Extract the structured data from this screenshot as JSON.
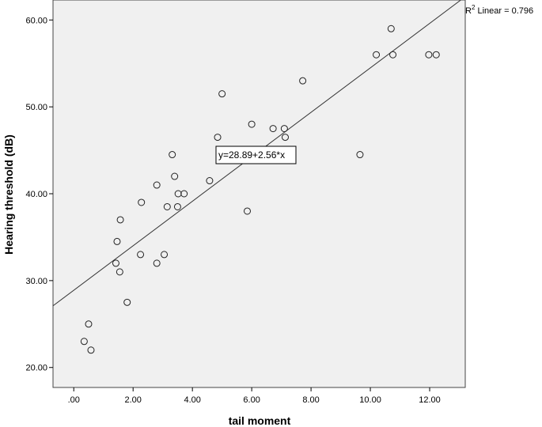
{
  "chart_data": {
    "type": "scatter",
    "xlabel": "tail moment",
    "ylabel": "Hearing threshold (dB)",
    "xlim": [
      -0.7,
      13.2
    ],
    "ylim": [
      17.7,
      62.3
    ],
    "x_ticks": [
      0,
      2,
      4,
      6,
      8,
      10,
      12
    ],
    "x_tick_labels": [
      ".00",
      "2.00",
      "4.00",
      "6.00",
      "8.00",
      "10.00",
      "12.00"
    ],
    "y_ticks": [
      20,
      30,
      40,
      50,
      60
    ],
    "y_tick_labels": [
      "20.00",
      "30.00",
      "40.00",
      "50.00",
      "60.00"
    ],
    "grid": false,
    "background_color": "#f0f0f0",
    "marker": "open-circle",
    "points": [
      {
        "x": 0.35,
        "y": 23.0
      },
      {
        "x": 0.5,
        "y": 25.0
      },
      {
        "x": 0.58,
        "y": 22.0
      },
      {
        "x": 1.42,
        "y": 32.0
      },
      {
        "x": 1.46,
        "y": 34.5
      },
      {
        "x": 1.55,
        "y": 31.0
      },
      {
        "x": 1.57,
        "y": 37.0
      },
      {
        "x": 1.8,
        "y": 27.5
      },
      {
        "x": 2.25,
        "y": 33.0
      },
      {
        "x": 2.28,
        "y": 39.0
      },
      {
        "x": 2.8,
        "y": 41.0
      },
      {
        "x": 2.8,
        "y": 32.0
      },
      {
        "x": 3.05,
        "y": 33.0
      },
      {
        "x": 3.15,
        "y": 38.5
      },
      {
        "x": 3.32,
        "y": 44.5
      },
      {
        "x": 3.4,
        "y": 42.0
      },
      {
        "x": 3.5,
        "y": 38.5
      },
      {
        "x": 3.52,
        "y": 40.0
      },
      {
        "x": 3.72,
        "y": 40.0
      },
      {
        "x": 4.58,
        "y": 41.5
      },
      {
        "x": 4.85,
        "y": 46.5
      },
      {
        "x": 5.0,
        "y": 51.5
      },
      {
        "x": 5.85,
        "y": 38.0
      },
      {
        "x": 6.0,
        "y": 48.0
      },
      {
        "x": 6.72,
        "y": 47.5
      },
      {
        "x": 7.1,
        "y": 47.5
      },
      {
        "x": 7.13,
        "y": 46.5
      },
      {
        "x": 7.72,
        "y": 53.0
      },
      {
        "x": 9.65,
        "y": 44.5
      },
      {
        "x": 10.2,
        "y": 56.0
      },
      {
        "x": 10.7,
        "y": 59.0
      },
      {
        "x": 10.76,
        "y": 56.0
      },
      {
        "x": 11.97,
        "y": 56.0
      },
      {
        "x": 12.22,
        "y": 56.0
      }
    ],
    "fit_line": {
      "intercept": 28.89,
      "slope": 2.56
    },
    "equation_label": "y=28.89+2.56*x",
    "r2_prefix": "R",
    "r2_sup": "2",
    "r2_text": " Linear = 0.796"
  }
}
